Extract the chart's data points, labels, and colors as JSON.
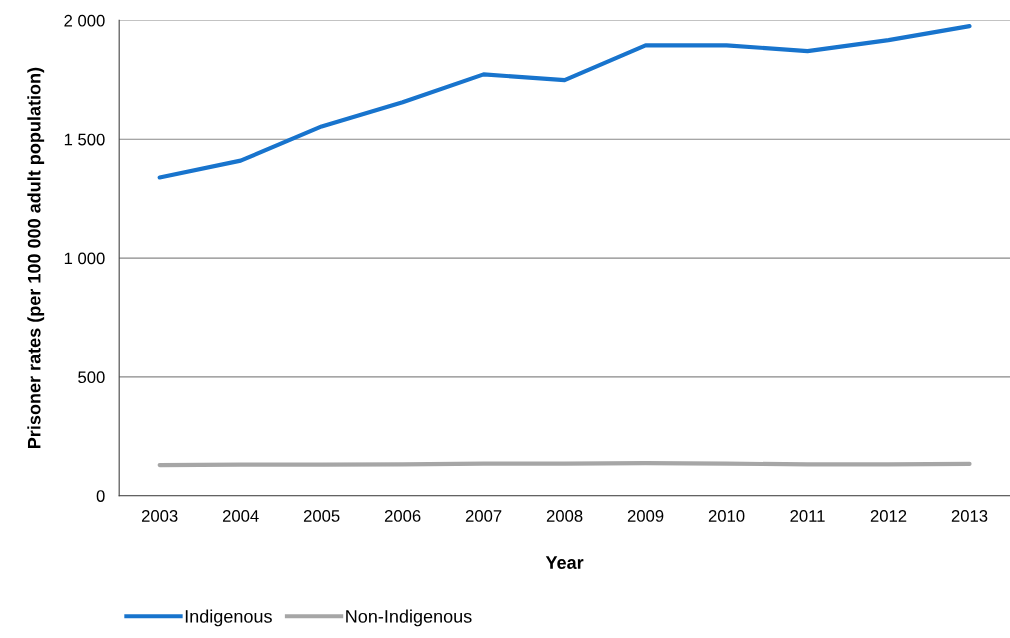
{
  "chart_data": {
    "type": "line",
    "xlabel": "Year",
    "ylabel": "Prisoner rates (per 100 000 adult population)",
    "categories": [
      "2003",
      "2004",
      "2005",
      "2006",
      "2007",
      "2008",
      "2009",
      "2010",
      "2011",
      "2012",
      "2013"
    ],
    "series": [
      {
        "name": "Indigenous",
        "color": "#1874cd",
        "values": [
          1339,
          1410,
          1554,
          1656,
          1773,
          1749,
          1895,
          1895,
          1871,
          1917,
          1976
        ]
      },
      {
        "name": "Non-Indigenous",
        "color": "#a6a6a6",
        "values": [
          129,
          131,
          131,
          132,
          135,
          135,
          137,
          135,
          132,
          132,
          134
        ]
      }
    ],
    "ylim": [
      0,
      2000
    ],
    "yticks": [
      0,
      500,
      {
        "value": 1000,
        "label": "1 000"
      },
      {
        "value": 1500,
        "label": "1 500"
      },
      {
        "value": 2000,
        "label": "2 000"
      }
    ],
    "grid": "y",
    "legend": "bottom left",
    "marker": "none",
    "line_style": "solid"
  }
}
